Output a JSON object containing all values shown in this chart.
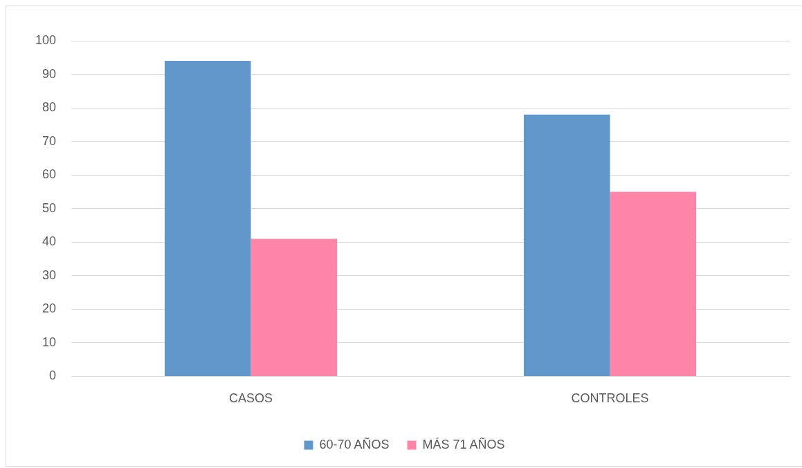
{
  "chart_data": {
    "type": "bar",
    "categories": [
      "CASOS",
      "CONTROLES"
    ],
    "series": [
      {
        "name": "60-70 AÑOS",
        "color": "#6096c9",
        "values": [
          94,
          78
        ]
      },
      {
        "name": "MÁS 71 AÑOS",
        "color": "#ff85a8",
        "values": [
          41,
          55
        ]
      }
    ],
    "ylim": [
      0,
      100
    ],
    "yticks": [
      0,
      10,
      20,
      30,
      40,
      50,
      60,
      70,
      80,
      90,
      100
    ],
    "grid": "y",
    "legend": "bottom"
  }
}
